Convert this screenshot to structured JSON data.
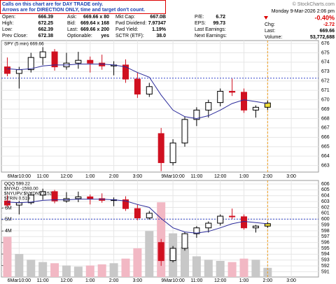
{
  "header": {
    "notice": [
      "Calls on this chart are for DAY TRADE only.",
      "Arrows are for DIRECTION ONLY, time and target don't count."
    ],
    "brand": "© StockCharts.com",
    "timestamp": "Monday 9-Mar-2026 2:06 pm",
    "change_pct": "-0.40%",
    "stats": [
      [
        [
          "Open:",
          "666.39"
        ],
        [
          "Ask:",
          "669.66 x 80"
        ],
        [
          "Mkt Cap:",
          "667.0B"
        ],
        [
          "P/E:",
          "6.72"
        ]
      ],
      [
        [
          "High:",
          "672.25"
        ],
        [
          "Bid:",
          "669.64 x 168"
        ],
        [
          "Fwd Dividend:",
          "7.97347"
        ],
        [
          "EPS:",
          "99.73"
        ]
      ],
      [
        [
          "Low:",
          "662.39"
        ],
        [
          "Last:",
          "669.66 x 200"
        ],
        [
          "Fwd Yield:",
          "1.19%"
        ],
        [
          "Last Earnings:"
        ]
      ],
      [
        [
          "Prev Close:",
          "672.38"
        ],
        [
          "Optionable:",
          "yes"
        ],
        [
          "SCTR (ETF):",
          "38.0"
        ],
        [
          "Next Earnings:"
        ]
      ]
    ],
    "quote": [
      [
        "Chg:",
        "-2.72"
      ],
      [
        "Last:",
        "669.66"
      ],
      [
        "Volume:",
        "53,772,688"
      ]
    ]
  },
  "chart_data": [
    {
      "type": "candlestick",
      "title": "SPY (5 min) 669.66",
      "candles": [
        [
          673.5,
          674.5,
          672.5,
          672.8
        ],
        [
          672.8,
          673.5,
          671.2,
          673.2
        ],
        [
          673.2,
          675.0,
          672.9,
          674.5
        ],
        [
          674.5,
          675.6,
          673.7,
          675.1
        ],
        [
          675.1,
          675.4,
          673.1,
          673.5
        ],
        [
          673.5,
          675.0,
          673.2,
          673.9
        ],
        [
          673.9,
          675.1,
          673.3,
          674.2
        ],
        [
          674.2,
          674.6,
          672.9,
          673.9
        ],
        [
          673.9,
          674.8,
          673.2,
          673.6
        ],
        [
          673.6,
          674.1,
          672.6,
          673.7
        ],
        [
          673.7,
          674.3,
          671.8,
          672.2
        ],
        [
          672.2,
          672.9,
          670.2,
          670.6
        ],
        [
          670.6,
          671.8,
          670.3,
          671.4
        ],
        [
          666.4,
          667.0,
          662.4,
          663.3
        ],
        [
          663.3,
          665.8,
          663.0,
          665.4
        ],
        [
          665.4,
          668.2,
          665.0,
          667.9
        ],
        [
          667.9,
          669.2,
          667.2,
          668.9
        ],
        [
          668.9,
          670.0,
          668.1,
          669.7
        ],
        [
          669.7,
          671.2,
          669.3,
          670.9
        ],
        [
          670.9,
          672.25,
          670.4,
          670.8
        ],
        [
          670.8,
          671.2,
          668.6,
          668.9
        ],
        [
          668.9,
          669.4,
          668.1,
          669.2
        ],
        [
          669.2,
          669.9,
          668.9,
          669.66
        ]
      ],
      "ma": {
        "color": "#2a2a9a",
        "values": [
          673.3,
          673.2,
          673.3,
          673.6,
          673.7,
          673.7,
          673.8,
          673.8,
          673.8,
          673.7,
          673.5,
          672.9,
          672.4,
          670.5,
          668.9,
          668.2,
          668.0,
          668.3,
          668.9,
          669.6,
          670.0,
          669.8,
          669.6
        ]
      },
      "level": 672.3,
      "cursor_x": 22,
      "xlim": [
        -0.5,
        26.3
      ],
      "xticks": [
        {
          "value": 1,
          "label": "6Mar10:00"
        },
        {
          "value": 3,
          "label": "11:00"
        },
        {
          "value": 5,
          "label": "12:00"
        },
        {
          "value": 7,
          "label": "1:00"
        },
        {
          "value": 9,
          "label": "2:00"
        },
        {
          "value": 11,
          "label": "3:00"
        },
        {
          "value": 14,
          "label": "9Mar10:00"
        },
        {
          "value": 16,
          "label": "11:00"
        },
        {
          "value": 18,
          "label": "12:00"
        },
        {
          "value": 20,
          "label": "1:00"
        },
        {
          "value": 22,
          "label": "2:00"
        },
        {
          "value": 24,
          "label": "3:00"
        }
      ],
      "ylim": [
        662.3,
        676.3
      ],
      "yticks": [
        663,
        664,
        665,
        666,
        667,
        668,
        669,
        670,
        671,
        672,
        673,
        674,
        675,
        676
      ],
      "grid": true
    },
    {
      "type": "candlestick",
      "title": "QQQ 599.22",
      "labels": [
        "$NYAD -1593.00",
        "$NYUPV:$NYDNV 0.52",
        "$TRIN 0.519"
      ],
      "candles": [
        [
          603.1,
          604.1,
          602.1,
          602.4
        ],
        [
          602.4,
          603.1,
          600.8,
          602.8
        ],
        [
          602.8,
          604.6,
          602.5,
          604.1
        ],
        [
          604.1,
          605.2,
          603.3,
          604.7
        ],
        [
          604.7,
          605.0,
          602.7,
          603.1
        ],
        [
          603.1,
          604.6,
          602.8,
          603.5
        ],
        [
          603.5,
          604.7,
          602.9,
          603.8
        ],
        [
          603.8,
          604.2,
          602.5,
          603.5
        ],
        [
          603.5,
          604.4,
          602.8,
          603.2
        ],
        [
          603.2,
          603.7,
          602.2,
          603.3
        ],
        [
          603.3,
          603.9,
          601.4,
          601.8
        ],
        [
          601.8,
          602.5,
          599.8,
          600.2
        ],
        [
          600.2,
          601.4,
          599.9,
          601.0
        ],
        [
          596.0,
          596.6,
          592.0,
          592.9
        ],
        [
          592.9,
          595.4,
          592.6,
          595.0
        ],
        [
          595.0,
          597.8,
          594.6,
          597.5
        ],
        [
          597.5,
          598.8,
          596.8,
          598.5
        ],
        [
          598.5,
          599.6,
          597.7,
          599.3
        ],
        [
          599.3,
          600.8,
          598.9,
          600.5
        ],
        [
          600.5,
          601.8,
          600.0,
          600.4
        ],
        [
          600.4,
          600.8,
          598.2,
          598.5
        ],
        [
          598.5,
          599.0,
          597.7,
          598.8
        ],
        [
          598.8,
          599.5,
          598.5,
          599.22
        ]
      ],
      "ma": {
        "color": "#2a2a9a",
        "values": [
          602.9,
          602.8,
          602.9,
          603.2,
          603.3,
          603.3,
          603.4,
          603.4,
          603.4,
          603.3,
          603.1,
          602.5,
          602.0,
          600.1,
          598.5,
          597.8,
          597.6,
          597.9,
          598.5,
          599.2,
          599.6,
          599.4,
          599.2
        ]
      },
      "volume": {
        "values": [
          3500000,
          2000000,
          1500000,
          1300000,
          1200000,
          1000000,
          900000,
          1000000,
          1100000,
          1200000,
          1600000,
          2500000,
          4000000,
          6500000,
          3800000,
          2600000,
          1800000,
          1500000,
          1400000,
          1300000,
          1600000,
          1500000,
          800000
        ],
        "ylim": [
          0,
          8400000
        ],
        "yticks": [
          {
            "value": 1000000,
            "label": "1M"
          },
          {
            "value": 2000000,
            "label": "2M"
          },
          {
            "value": 3000000,
            "label": "3M"
          },
          {
            "value": 4000000,
            "label": "4M"
          },
          {
            "value": 5000000,
            "label": "5M"
          },
          {
            "value": 6000000,
            "label": "6M"
          }
        ]
      },
      "level": 600,
      "cursor_x": 22,
      "xlim": [
        -0.5,
        26.3
      ],
      "xticks": [
        {
          "value": 1,
          "label": "6Mar10:00"
        },
        {
          "value": 3,
          "label": "11:00"
        },
        {
          "value": 5,
          "label": "12:00"
        },
        {
          "value": 7,
          "label": "1:00"
        },
        {
          "value": 9,
          "label": "2:00"
        },
        {
          "value": 11,
          "label": "3:00"
        },
        {
          "value": 14,
          "label": "9Mar10:00"
        },
        {
          "value": 16,
          "label": "11:00"
        },
        {
          "value": 18,
          "label": "12:00"
        },
        {
          "value": 20,
          "label": "1:00"
        },
        {
          "value": 22,
          "label": "2:00"
        },
        {
          "value": 24,
          "label": "3:00"
        }
      ],
      "ylim": [
        590.1,
        606.6
      ],
      "yticks": [
        591,
        592,
        593,
        594,
        595,
        596,
        597,
        598,
        599,
        600,
        601,
        602,
        603,
        604,
        605,
        606
      ],
      "grid": true
    }
  ]
}
